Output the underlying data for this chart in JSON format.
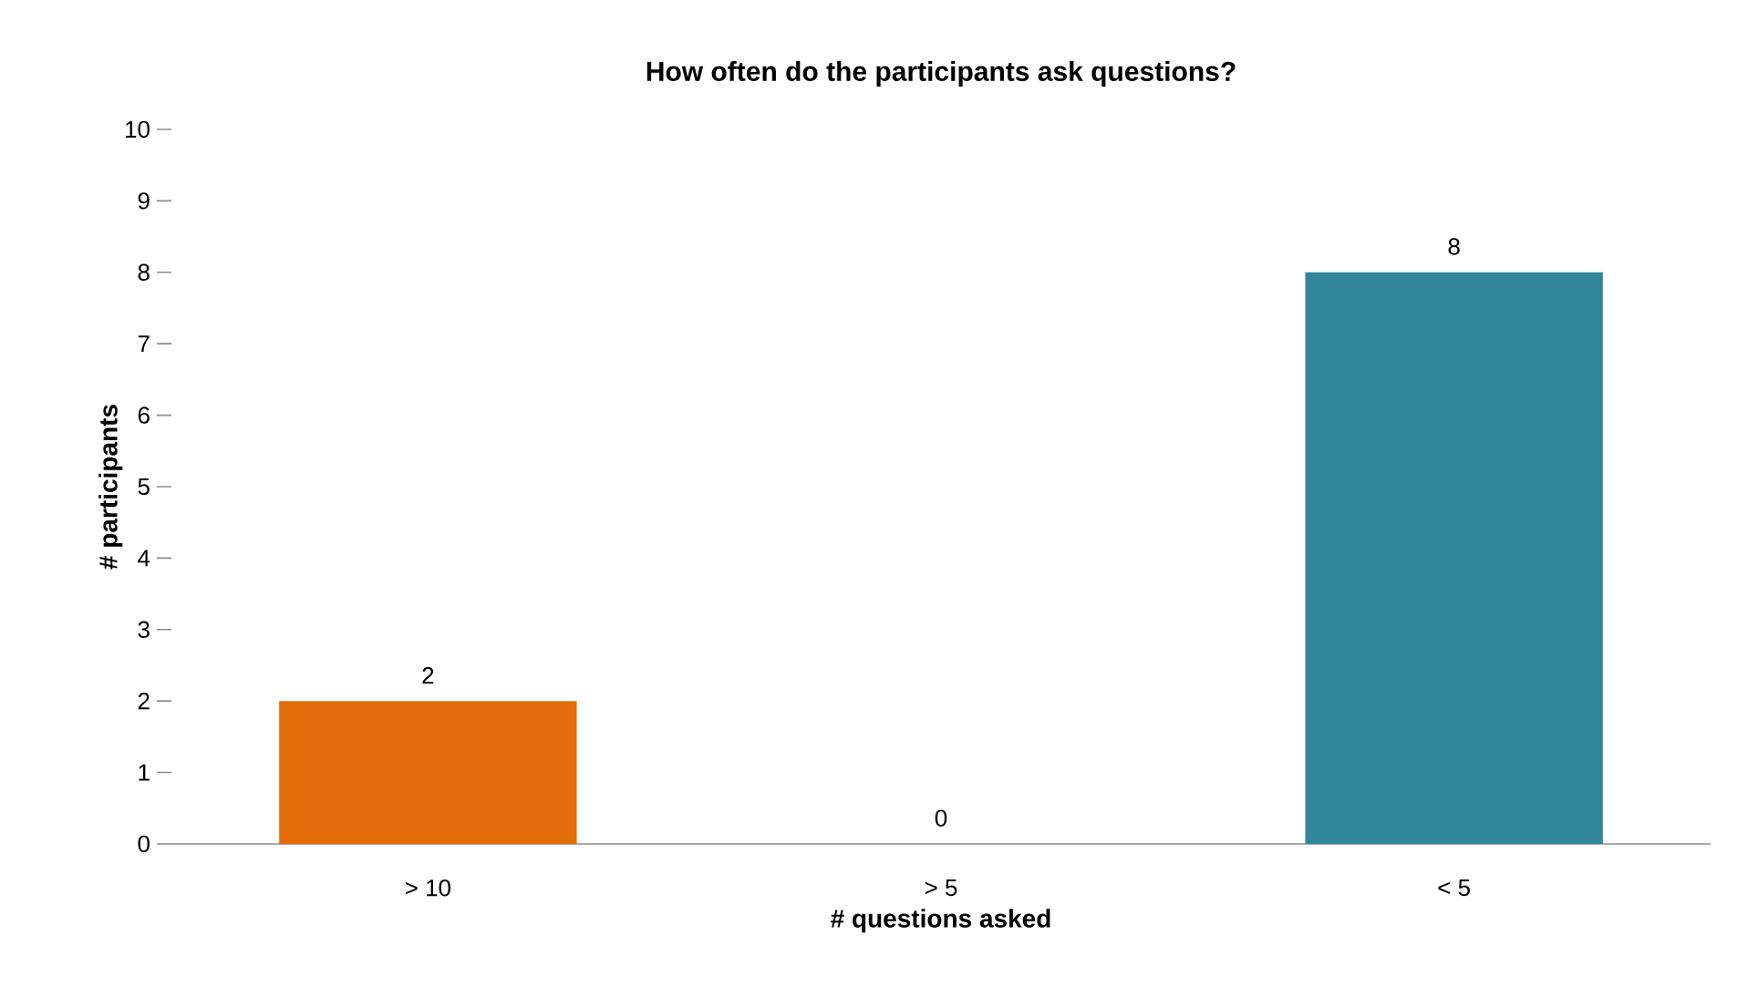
{
  "chart_data": {
    "type": "bar",
    "title": "How often do the participants ask questions?",
    "xlabel": "# questions asked",
    "ylabel": "# participants",
    "categories": [
      "> 10",
      "> 5",
      "< 5"
    ],
    "values": [
      2,
      0,
      8
    ],
    "colors": [
      "#e36c0a",
      "#31859c",
      "#31859c"
    ],
    "ylim": [
      0,
      10
    ],
    "yticks": [
      0,
      1,
      2,
      3,
      4,
      5,
      6,
      7,
      8,
      9,
      10
    ],
    "grid": false,
    "data_labels": true
  }
}
